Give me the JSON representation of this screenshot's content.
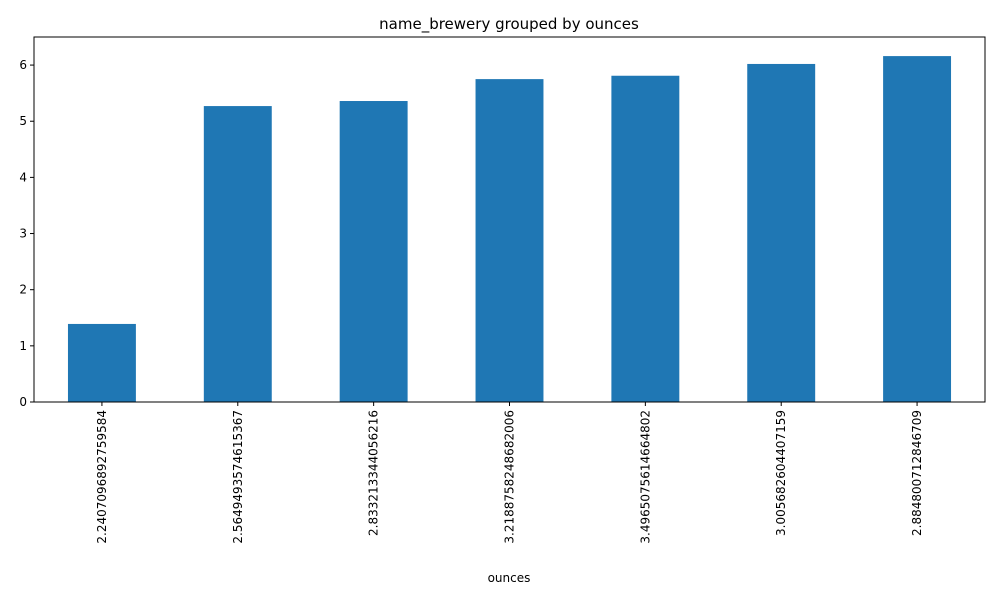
{
  "chart_data": {
    "type": "bar",
    "title": "name_brewery grouped by ounces",
    "xlabel": "ounces",
    "ylabel": "",
    "categories": [
      "2.2407096892759584",
      "2.5649493574615367",
      "2.833213344056216",
      "3.2188758248682006",
      "3.4965075614664802",
      "3.005682604407159",
      "2.884800712846709"
    ],
    "values": [
      1.39,
      5.27,
      5.36,
      5.75,
      5.81,
      6.02,
      6.16
    ],
    "ylim": [
      0,
      6.5
    ],
    "yticks": [
      0,
      1,
      2,
      3,
      4,
      5,
      6
    ],
    "bar_color": "#1f77b4",
    "grid": false,
    "legend": "none"
  }
}
